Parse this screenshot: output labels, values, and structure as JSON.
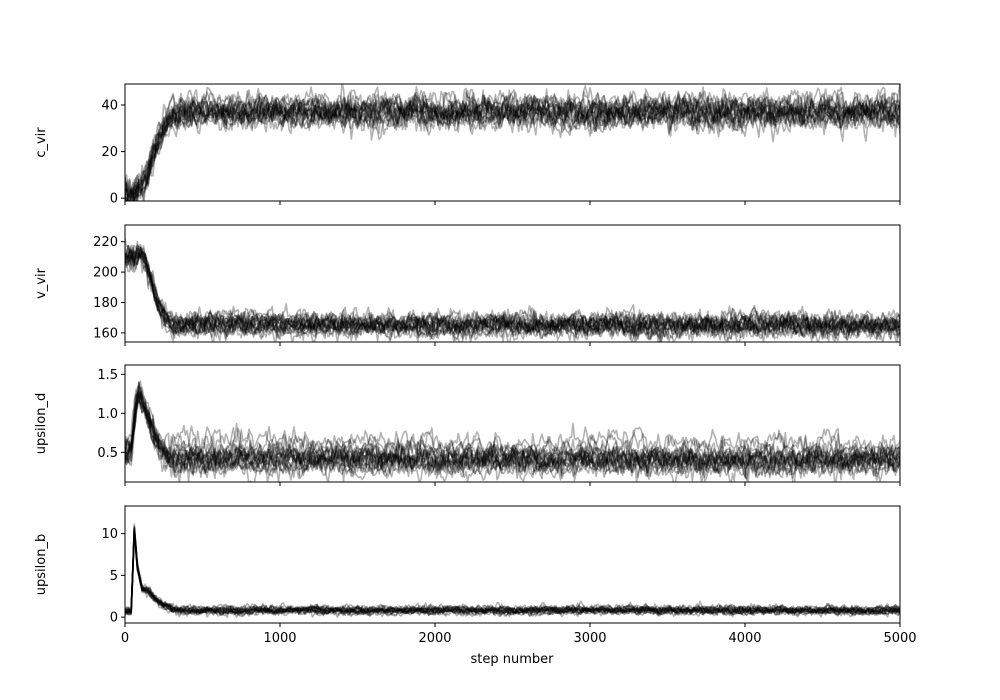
{
  "chart_data": {
    "type": "line",
    "description_type": "trace plot",
    "xlabel": "step number",
    "xlim": [
      0,
      5000
    ],
    "x_ticks": [
      0,
      1000,
      2000,
      3000,
      4000,
      5000
    ],
    "x_tick_labels": [
      "0",
      "1000",
      "2000",
      "3000",
      "4000",
      "5000"
    ],
    "line_color": "#000000",
    "line_alpha": 0.3,
    "grid": false,
    "legend": "none",
    "panels": [
      {
        "ylabel": "c_vir",
        "ylim": [
          -1.2,
          49
        ],
        "y_ticks": [
          0,
          20,
          40
        ],
        "y_tick_labels": [
          "0",
          "20",
          "40"
        ],
        "trace": {
          "start_value": 2,
          "converged_value": 37,
          "converge_step": 350,
          "spread": 2.5,
          "path": [
            [
              0,
              2
            ],
            [
              60,
              2
            ],
            [
              100,
              5
            ],
            [
              150,
              12
            ],
            [
              200,
              22
            ],
            [
              250,
              30
            ],
            [
              300,
              35
            ],
            [
              350,
              37
            ],
            [
              5000,
              37
            ]
          ]
        }
      },
      {
        "ylabel": "v_vir",
        "ylim": [
          154,
          231
        ],
        "y_ticks": [
          160,
          180,
          200,
          220
        ],
        "y_tick_labels": [
          "160",
          "180",
          "200",
          "220"
        ],
        "trace": {
          "start_value": 209,
          "converged_value": 165,
          "converge_step": 300,
          "spread": 3,
          "path": [
            [
              0,
              209
            ],
            [
              50,
              209
            ],
            [
              90,
              213
            ],
            [
              130,
              208
            ],
            [
              170,
              195
            ],
            [
              210,
              180
            ],
            [
              260,
              170
            ],
            [
              300,
              166
            ],
            [
              5000,
              165
            ]
          ]
        }
      },
      {
        "ylabel": "upsilon_d",
        "ylim": [
          0.12,
          1.62
        ],
        "y_ticks": [
          0.5,
          1.0,
          1.5
        ],
        "y_tick_labels": [
          "0.5",
          "1.0",
          "1.5"
        ],
        "trace": {
          "start_value": 0.5,
          "converged_value": 0.4,
          "converge_step": 300,
          "spread": 0.07,
          "path": [
            [
              0,
              0.5
            ],
            [
              40,
              0.52
            ],
            [
              70,
              1.1
            ],
            [
              90,
              1.28
            ],
            [
              130,
              1.05
            ],
            [
              180,
              0.75
            ],
            [
              230,
              0.55
            ],
            [
              300,
              0.42
            ],
            [
              5000,
              0.4
            ]
          ],
          "outlier_path": [
            [
              300,
              0.6
            ],
            [
              5000,
              0.55
            ]
          ]
        }
      },
      {
        "ylabel": "upsilon_b",
        "ylim": [
          -0.7,
          13.3
        ],
        "y_ticks": [
          0,
          5,
          10
        ],
        "y_tick_labels": [
          "0",
          "5",
          "10"
        ],
        "trace": {
          "start_value": 0.7,
          "converged_value": 0.8,
          "converge_step": 350,
          "spread": 0.2,
          "path": [
            [
              0,
              0.7
            ],
            [
              40,
              0.7
            ],
            [
              60,
              10.5
            ],
            [
              80,
              6
            ],
            [
              110,
              3.5
            ],
            [
              160,
              3.0
            ],
            [
              220,
              1.8
            ],
            [
              300,
              1.0
            ],
            [
              350,
              0.8
            ],
            [
              5000,
              0.8
            ]
          ]
        }
      }
    ]
  }
}
